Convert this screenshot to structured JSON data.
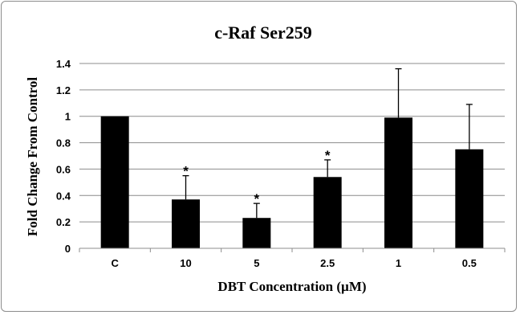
{
  "chart_data": {
    "type": "bar",
    "title": "c-Raf Ser259",
    "xlabel": "DBT Concentration (µM)",
    "ylabel": "Fold Change From Control",
    "categories": [
      "C",
      "10",
      "5",
      "2.5",
      "1",
      "0.5"
    ],
    "values": [
      1.0,
      0.37,
      0.23,
      0.54,
      0.99,
      0.75
    ],
    "error_upper": [
      0.0,
      0.18,
      0.11,
      0.13,
      0.37,
      0.34
    ],
    "annotations": [
      "",
      "*",
      "*",
      "*",
      "",
      ""
    ],
    "ylim": [
      0,
      1.4
    ],
    "yticks": [
      "0",
      "0.2",
      "0.4",
      "0.6",
      "0.8",
      "1",
      "1.2",
      "1.4"
    ],
    "ytick_values": [
      0,
      0.2,
      0.4,
      0.6,
      0.8,
      1.0,
      1.2,
      1.4
    ],
    "grid": true,
    "legend": "none",
    "colors": {
      "bar": "#000000",
      "gridline": "#8c8c8c",
      "axis": "#8c8c8c",
      "error_bar": "#000000"
    }
  }
}
